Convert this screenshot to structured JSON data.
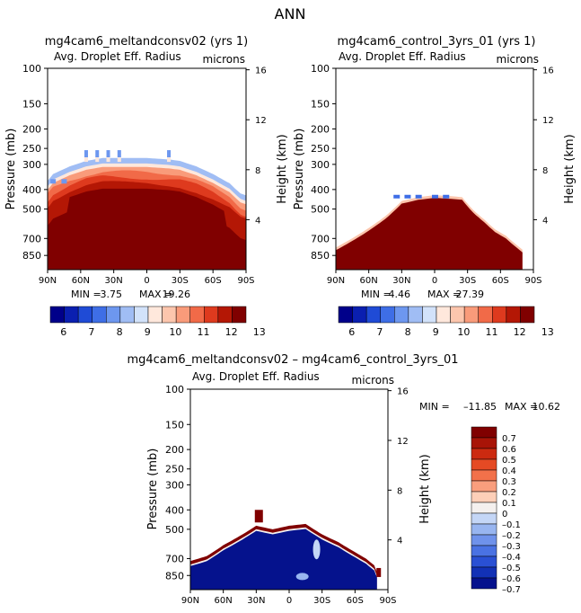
{
  "page_title": "ANN",
  "chart_data": [
    {
      "type": "heatmap",
      "id": "melt",
      "title": "mg4cam6_meltandconsv02 (yrs 1)",
      "subtitle": "Avg. Droplet Eff. Radius",
      "units": "microns",
      "xlabel": "",
      "ylabel": "Pressure (mb)",
      "y2label": "Height (km)",
      "x_ticks": [
        "90N",
        "60N",
        "30N",
        "0",
        "30S",
        "60S",
        "90S"
      ],
      "y_ticks": [
        100,
        150,
        200,
        250,
        300,
        400,
        500,
        700,
        850
      ],
      "ylim": [
        1000,
        100
      ],
      "height_ticks": [
        4,
        8,
        12,
        16
      ],
      "min_label": "MIN =",
      "min": "3.75",
      "max_label": "MAX =",
      "max": "19.26",
      "colorbar_labels": [
        "6",
        "7",
        "8",
        "9",
        "10",
        "11",
        "12",
        "13"
      ],
      "cloud_top_mb": [
        [
          -90,
          390
        ],
        [
          -85,
          360
        ],
        [
          -70,
          330
        ],
        [
          -55,
          310
        ],
        [
          -40,
          300
        ],
        [
          -20,
          300
        ],
        [
          0,
          300
        ],
        [
          20,
          305
        ],
        [
          30,
          310
        ],
        [
          45,
          330
        ],
        [
          60,
          360
        ],
        [
          75,
          400
        ],
        [
          85,
          450
        ],
        [
          90,
          460
        ]
      ]
    },
    {
      "type": "heatmap",
      "id": "ctrl",
      "title": "mg4cam6_control_3yrs_01 (yrs 1)",
      "subtitle": "Avg. Droplet Eff. Radius",
      "units": "microns",
      "xlabel": "",
      "ylabel": "Pressure (mb)",
      "y2label": "Height (km)",
      "x_ticks": [
        "90N",
        "60N",
        "30N",
        "0",
        "30S",
        "60S",
        "90S"
      ],
      "y_ticks": [
        100,
        150,
        200,
        250,
        300,
        400,
        500,
        700,
        850
      ],
      "ylim": [
        1000,
        100
      ],
      "height_ticks": [
        4,
        8,
        12,
        16
      ],
      "min_label": "MIN =",
      "min": "4.46",
      "max_label": "MAX =",
      "max": "27.39",
      "colorbar_labels": [
        "6",
        "7",
        "8",
        "9",
        "10",
        "11",
        "12",
        "13"
      ],
      "cloud_top_mb": [
        [
          -90,
          800
        ],
        [
          -75,
          720
        ],
        [
          -60,
          640
        ],
        [
          -45,
          560
        ],
        [
          -30,
          470
        ],
        [
          -15,
          450
        ],
        [
          0,
          440
        ],
        [
          15,
          445
        ],
        [
          25,
          450
        ],
        [
          35,
          520
        ],
        [
          45,
          580
        ],
        [
          55,
          650
        ],
        [
          65,
          700
        ],
        [
          75,
          780
        ],
        [
          80,
          820
        ]
      ]
    },
    {
      "type": "heatmap",
      "id": "diff",
      "title": "mg4cam6_meltandconsv02 – mg4cam6_control_3yrs_01",
      "subtitle": "Avg. Droplet Eff. Radius",
      "units": "microns",
      "xlabel": "",
      "ylabel": "Pressure (mb)",
      "y2label": "Height (km)",
      "x_ticks": [
        "90N",
        "60N",
        "30N",
        "0",
        "30S",
        "60S",
        "90S"
      ],
      "y_ticks": [
        100,
        150,
        200,
        250,
        300,
        400,
        500,
        700,
        850
      ],
      "ylim": [
        1000,
        100
      ],
      "height_ticks": [
        4,
        8,
        12,
        16
      ],
      "min_label": "MIN =",
      "min": "–11.85",
      "max_label": "MAX =",
      "max": "10.62",
      "colorbar_labels": [
        "0.7",
        "0.6",
        "0.5",
        "0.4",
        "0.3",
        "0.2",
        "0.1",
        "0",
        "–0.1",
        "–0.2",
        "–0.3",
        "–0.4",
        "–0.5",
        "–0.6",
        "–0.7"
      ],
      "cloud_top_mb": [
        [
          -90,
          720
        ],
        [
          -75,
          680
        ],
        [
          -60,
          600
        ],
        [
          -45,
          540
        ],
        [
          -30,
          480
        ],
        [
          -15,
          500
        ],
        [
          0,
          480
        ],
        [
          15,
          470
        ],
        [
          30,
          530
        ],
        [
          45,
          580
        ],
        [
          60,
          650
        ],
        [
          70,
          700
        ],
        [
          78,
          760
        ],
        [
          80,
          820
        ]
      ]
    }
  ],
  "colors": {
    "seq": [
      "#00008a",
      "#0a1fb0",
      "#1f4bd6",
      "#3e6ee6",
      "#6d97ef",
      "#a0bdf4",
      "#d2e2fa",
      "#ffe8dc",
      "#fcc6ad",
      "#f99b7a",
      "#f16a48",
      "#de3a1e",
      "#b41705",
      "#800000"
    ],
    "diff": [
      "#800000",
      "#a81407",
      "#cc2a10",
      "#e54a24",
      "#f2714a",
      "#f99e7d",
      "#fdcfb8",
      "#f4f0ee",
      "#c4d6f6",
      "#98b5f0",
      "#6f92eb",
      "#4a72e3",
      "#2a50d4",
      "#1231b6",
      "#05128d"
    ]
  }
}
